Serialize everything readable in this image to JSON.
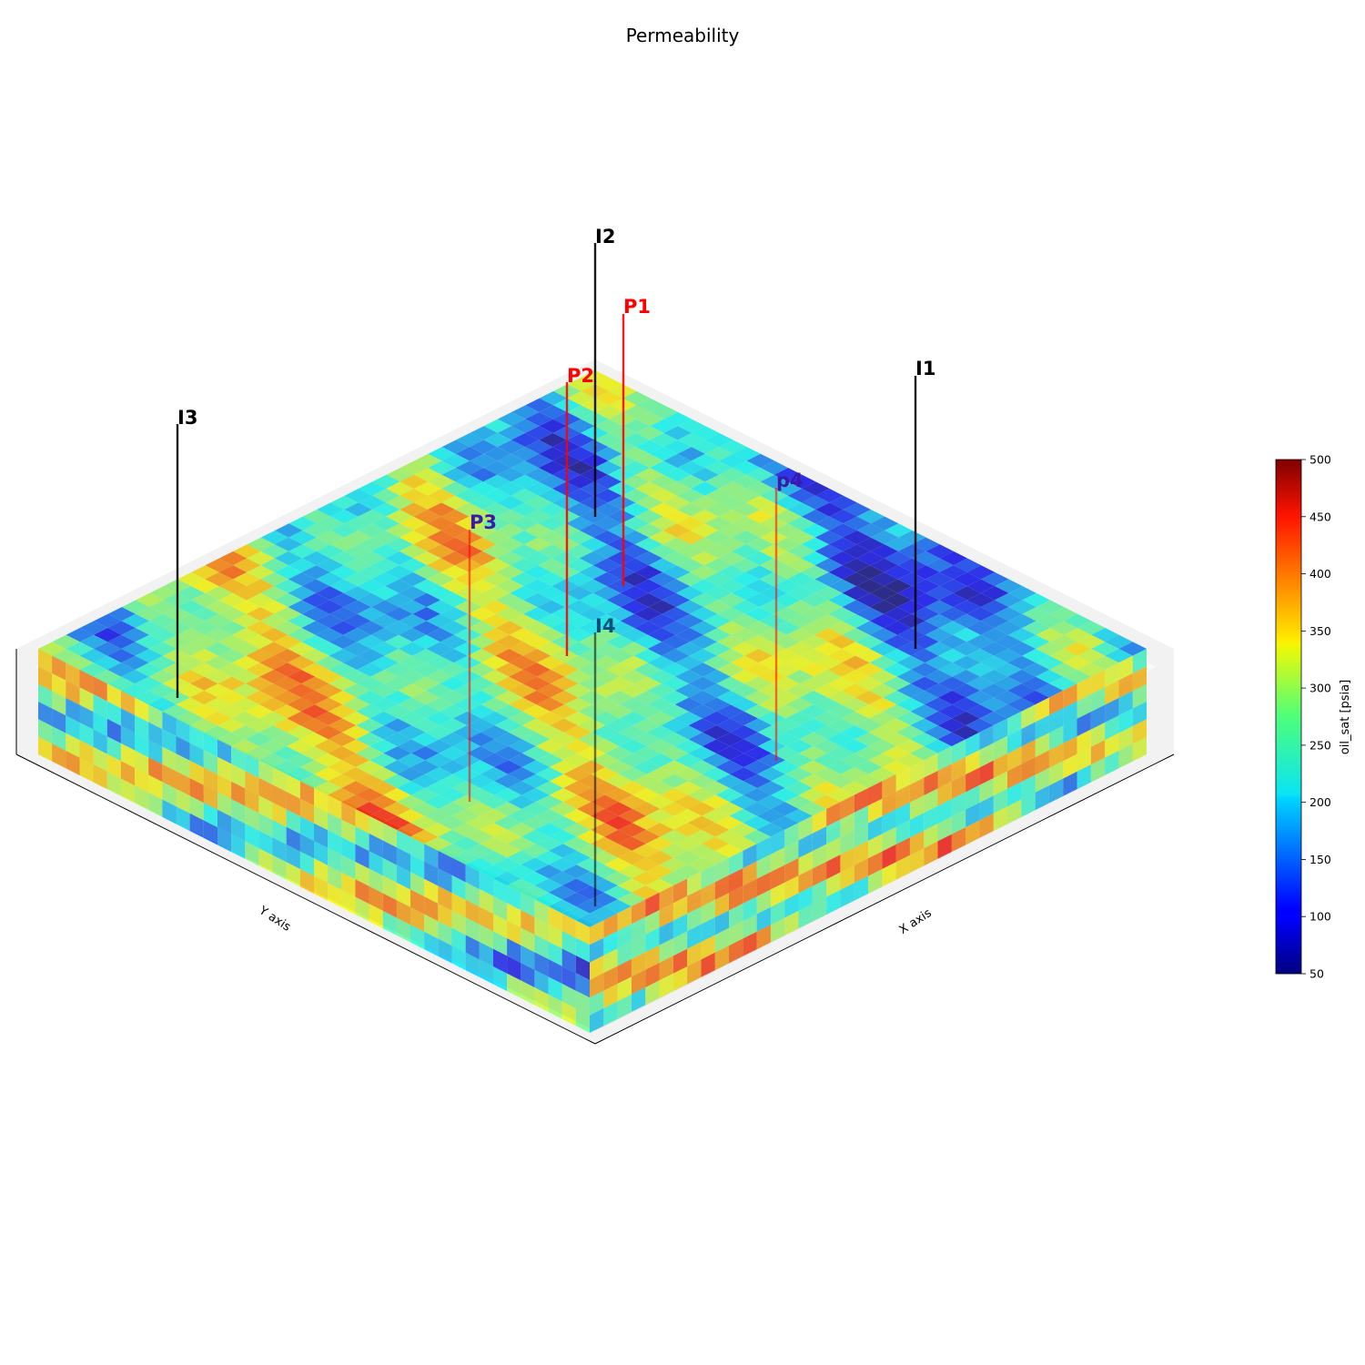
{
  "chart_data": {
    "type": "heatmap",
    "title": "Permeability",
    "xlabel": "X axis",
    "ylabel": "Y axis",
    "colorbar": {
      "label": "oil_sat [psia]",
      "colormap": "jet",
      "range": [
        50,
        500
      ],
      "ticks": [
        "50",
        "100",
        "150",
        "200",
        "250",
        "300",
        "350",
        "400",
        "450",
        "500"
      ]
    },
    "wells": [
      {
        "name": "I1",
        "color": "#000000"
      },
      {
        "name": "I2",
        "color": "#000000"
      },
      {
        "name": "I3",
        "color": "#000000"
      },
      {
        "name": "I4",
        "color": "#000000"
      },
      {
        "name": "P1",
        "color": "#ff0000"
      },
      {
        "name": "P2",
        "color": "#ff0000"
      },
      {
        "name": "P3",
        "color": "#ff0000"
      },
      {
        "name": "p4",
        "color": "#ff0000"
      }
    ],
    "grid": false
  }
}
